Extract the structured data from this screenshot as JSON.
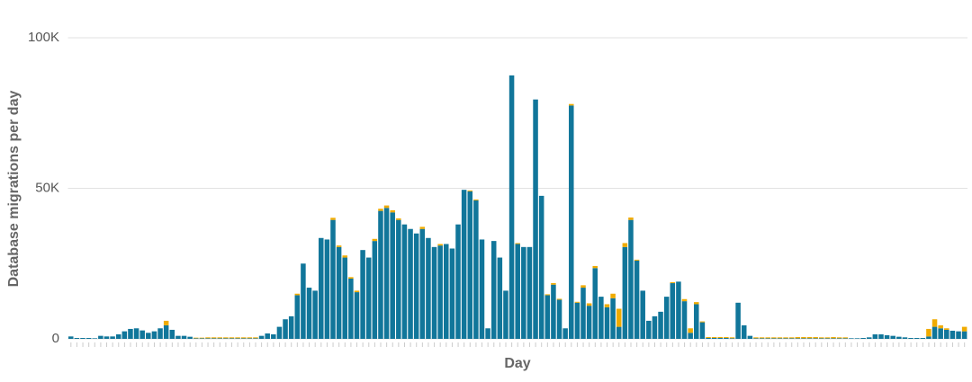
{
  "chart_data": {
    "type": "stacked_bar",
    "y_label": "Database migrations per day",
    "x_label": "Day",
    "categories": [
      null,
      null,
      null,
      null,
      null,
      null,
      null,
      null,
      null,
      null,
      null,
      null,
      null,
      null,
      null,
      null,
      null,
      null,
      null,
      null,
      null,
      null,
      null,
      null,
      null,
      null,
      null,
      null,
      null,
      null,
      null,
      null,
      null,
      null,
      null,
      null,
      null,
      null,
      null,
      null,
      null,
      null,
      null,
      null,
      null,
      null,
      null,
      null,
      null,
      null,
      null,
      null,
      null,
      null,
      null,
      null,
      null,
      null,
      null,
      null,
      null,
      null,
      null,
      null,
      null,
      null,
      null,
      null,
      null,
      null,
      null,
      null,
      null,
      null,
      null,
      null,
      null,
      null,
      null,
      null,
      null,
      null,
      null,
      null,
      null,
      null,
      null,
      null,
      null,
      null,
      null,
      null,
      null,
      null,
      null,
      null,
      null,
      null,
      null,
      null,
      null,
      null,
      null,
      null,
      null,
      null,
      null,
      null,
      null,
      null,
      null,
      null,
      null,
      null,
      null,
      null,
      null,
      null,
      null,
      null,
      null,
      null,
      null,
      null,
      null,
      null,
      null,
      null,
      null,
      null,
      null,
      null,
      null,
      null,
      null,
      null,
      null,
      null,
      null,
      null,
      null,
      null,
      null,
      null,
      null,
      null,
      null,
      null,
      null,
      null,
      null
    ],
    "series": [
      {
        "color": "#11769a",
        "values": [
          800,
          300,
          300,
          300,
          200,
          1000,
          800,
          800,
          1500,
          2500,
          3300,
          3500,
          2800,
          2000,
          2500,
          3500,
          4500,
          3000,
          1000,
          1000,
          700,
          200,
          200,
          200,
          200,
          200,
          200,
          200,
          200,
          200,
          200,
          200,
          1000,
          1800,
          1500,
          4000,
          6500,
          7500,
          14500,
          25000,
          17000,
          16000,
          33500,
          33000,
          39500,
          30500,
          27000,
          20000,
          15500,
          29500,
          27000,
          32500,
          42500,
          43500,
          42000,
          39500,
          38000,
          36500,
          35000,
          36500,
          33500,
          30500,
          31000,
          31500,
          30000,
          38000,
          49500,
          49000,
          46000,
          33000,
          3500,
          32500,
          27000,
          16000,
          87500,
          31500,
          30500,
          30500,
          79500,
          47500,
          14500,
          18000,
          13000,
          3500,
          77500,
          12000,
          17000,
          11000,
          23500,
          14000,
          10500,
          13500,
          4000,
          30500,
          39500,
          26000,
          16000,
          6000,
          7500,
          9000,
          14000,
          18500,
          19000,
          12500,
          2000,
          11500,
          5500,
          300,
          300,
          300,
          300,
          200,
          12000,
          4500,
          1000,
          200,
          200,
          200,
          200,
          200,
          200,
          200,
          200,
          200,
          200,
          200,
          200,
          200,
          200,
          200,
          200,
          200,
          200,
          300,
          500,
          1500,
          1500,
          1200,
          1000,
          700,
          500,
          300,
          300,
          300,
          800,
          4000,
          3500,
          3000,
          2700,
          2500,
          2500
        ]
      },
      {
        "color": "#f0ab00",
        "values": [
          0,
          0,
          0,
          0,
          0,
          0,
          0,
          0,
          0,
          0,
          0,
          0,
          0,
          0,
          0,
          0,
          1500,
          0,
          0,
          0,
          0,
          200,
          200,
          300,
          300,
          300,
          300,
          300,
          300,
          300,
          300,
          300,
          0,
          0,
          0,
          0,
          0,
          0,
          500,
          0,
          0,
          0,
          0,
          0,
          700,
          500,
          700,
          500,
          500,
          0,
          0,
          700,
          700,
          800,
          700,
          500,
          0,
          0,
          0,
          700,
          0,
          0,
          500,
          0,
          0,
          0,
          0,
          300,
          300,
          0,
          0,
          0,
          0,
          0,
          0,
          300,
          0,
          0,
          0,
          0,
          300,
          500,
          300,
          0,
          500,
          300,
          800,
          800,
          700,
          0,
          1000,
          1500,
          6000,
          1300,
          800,
          300,
          0,
          0,
          0,
          0,
          0,
          300,
          0,
          700,
          1500,
          700,
          300,
          300,
          300,
          300,
          300,
          300,
          0,
          0,
          0,
          300,
          300,
          300,
          300,
          300,
          300,
          300,
          400,
          400,
          400,
          400,
          300,
          300,
          400,
          300,
          300,
          0,
          0,
          0,
          0,
          0,
          0,
          0,
          0,
          0,
          0,
          0,
          0,
          0,
          2500,
          2500,
          1000,
          500,
          0,
          0,
          1500
        ]
      }
    ],
    "ylim": [
      0,
      100000
    ],
    "yticks": [
      {
        "value": 0,
        "label": "0"
      },
      {
        "value": 50000,
        "label": "50K"
      },
      {
        "value": 100000,
        "label": "100K"
      }
    ],
    "grid": true
  }
}
